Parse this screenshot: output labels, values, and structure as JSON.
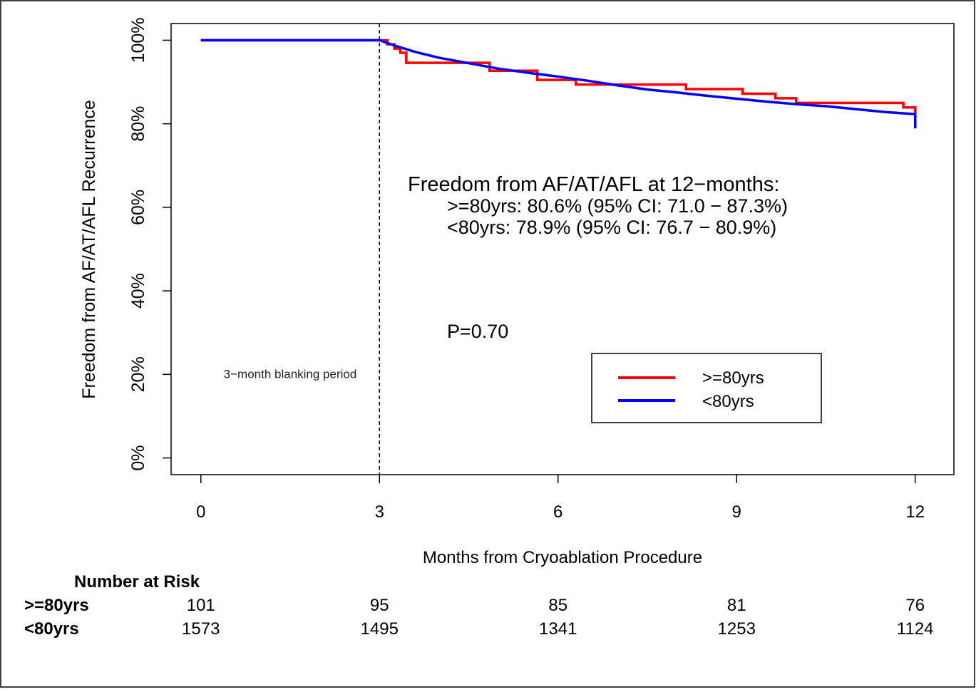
{
  "chart_data": {
    "type": "line",
    "ylabel": "Freedom from AF/AT/AFL Recurrence",
    "xlabel": "Months from Cryoablation Procedure",
    "x_ticks": [
      0,
      3,
      6,
      9,
      12
    ],
    "x_tick_labels": [
      "0",
      "3",
      "6",
      "9",
      "12"
    ],
    "y_ticks": [
      0,
      20,
      40,
      60,
      80,
      100
    ],
    "y_tick_labels": [
      "0%",
      "20%",
      "40%",
      "60%",
      "80%",
      "100%"
    ],
    "xlim": [
      -0.5,
      12.65
    ],
    "ylim": [
      -4,
      104
    ],
    "grid": false,
    "legend_position": "bottom-right",
    "blanking_line_x": 3,
    "blanking_label": "3−month blanking period",
    "annotation": {
      "title": "Freedom from AF/AT/AFL at 12−months:",
      "line1": ">=80yrs: 80.6% (95% CI: 71.0 − 87.3%)",
      "line2": "<80yrs: 78.9% (95% CI: 76.7 − 80.9%)",
      "pvalue": "P=0.70"
    },
    "series": [
      {
        "name": ">=80yrs",
        "color": "#ff0000",
        "step": true,
        "x": [
          0,
          3.0,
          3.13,
          3.25,
          3.35,
          3.45,
          4.8,
          4.85,
          5.6,
          5.65,
          6.25,
          6.3,
          8.1,
          8.15,
          9.05,
          9.1,
          9.6,
          9.65,
          9.95,
          10.0,
          11.75,
          11.8,
          12.0,
          12.0
        ],
        "y": [
          100,
          100,
          99,
          98,
          97,
          94.6,
          94.6,
          92.7,
          92.7,
          90.5,
          90.5,
          89.4,
          89.4,
          88.3,
          88.3,
          87.2,
          87.2,
          86.1,
          86.1,
          85.0,
          85.0,
          83.9,
          83.9,
          80.6
        ]
      },
      {
        "name": "<80yrs",
        "color": "#0000ff",
        "step": false,
        "x": [
          0,
          3.0,
          3.3,
          3.6,
          4.0,
          4.5,
          5.0,
          5.5,
          6.0,
          6.5,
          7.0,
          7.5,
          8.0,
          8.5,
          9.0,
          9.5,
          10.0,
          10.5,
          11.0,
          11.5,
          11.8,
          12.0,
          12.0
        ],
        "y": [
          100,
          100,
          98.5,
          97.2,
          95.8,
          94.5,
          93.2,
          92.2,
          91.3,
          90.3,
          89.2,
          88.2,
          87.5,
          86.7,
          86.0,
          85.3,
          84.7,
          84.2,
          83.5,
          82.8,
          82.5,
          82.3,
          78.9
        ]
      }
    ],
    "risk_table": {
      "title": "Number at Risk",
      "times": [
        0,
        3,
        6,
        9,
        12
      ],
      "rows": [
        {
          "label": ">=80yrs",
          "values": [
            "101",
            "95",
            "85",
            "81",
            "76"
          ]
        },
        {
          "label": "<80yrs",
          "values": [
            "1573",
            "1495",
            "1341",
            "1253",
            "1124"
          ]
        }
      ]
    }
  }
}
